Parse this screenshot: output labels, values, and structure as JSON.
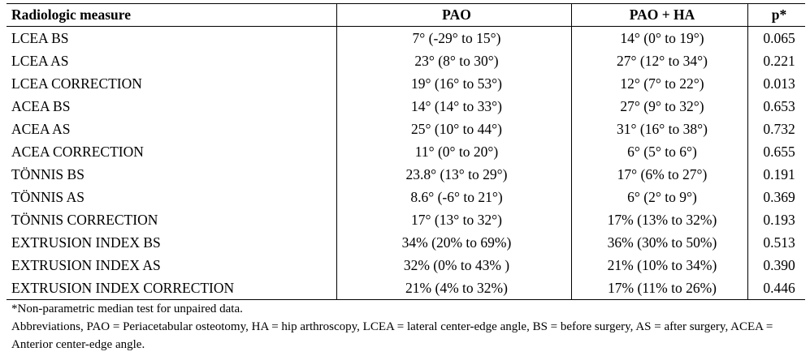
{
  "table": {
    "headers": [
      "Radiologic measure",
      "PAO",
      "PAO + HA",
      "p*"
    ],
    "rows": [
      [
        "LCEA BS",
        "7° (-29° to 15°)",
        "14° (0° to 19°)",
        "0.065"
      ],
      [
        "LCEA AS",
        "23° (8° to 30°)",
        "27° (12° to 34°)",
        "0.221"
      ],
      [
        "LCEA CORRECTION",
        "19° (16° to 53°)",
        "12° (7° to 22°)",
        "0.013"
      ],
      [
        "ACEA BS",
        "14° (14° to 33°)",
        "27° (9° to 32°)",
        "0.653"
      ],
      [
        "ACEA AS",
        "25° (10° to 44°)",
        "31° (16° to 38°)",
        "0.732"
      ],
      [
        "ACEA CORRECTION",
        "11° (0° to 20°)",
        "6° (5° to 6°)",
        "0.655"
      ],
      [
        "TÖNNIS BS",
        "23.8° (13° to 29°)",
        "17° (6% to 27°)",
        "0.191"
      ],
      [
        "TÖNNIS AS",
        "8.6° (-6° to 21°)",
        "6° (2° to 9°)",
        "0.369"
      ],
      [
        "TÖNNIS CORRECTION",
        "17° (13° to 32°)",
        "17% (13% to 32%)",
        "0.193"
      ],
      [
        "EXTRUSION INDEX BS",
        "34% (20% to 69%)",
        "36% (30% to 50%)",
        "0.513"
      ],
      [
        "EXTRUSION INDEX AS",
        "32% (0% to 43% )",
        "21% (10% to 34%)",
        "0.390"
      ],
      [
        "EXTRUSION INDEX CORRECTION",
        "21% (4% to 32%)",
        "17% (11% to 26%)",
        "0.446"
      ]
    ]
  },
  "footnotes": {
    "test_note": "*Non-parametric median test for unpaired data.",
    "abbreviations": "Abbreviations, PAO = Periacetabular osteotomy, HA = hip arthroscopy, LCEA = lateral center-edge angle, BS = before surgery, AS = after surgery, ACEA = Anterior center-edge angle."
  }
}
